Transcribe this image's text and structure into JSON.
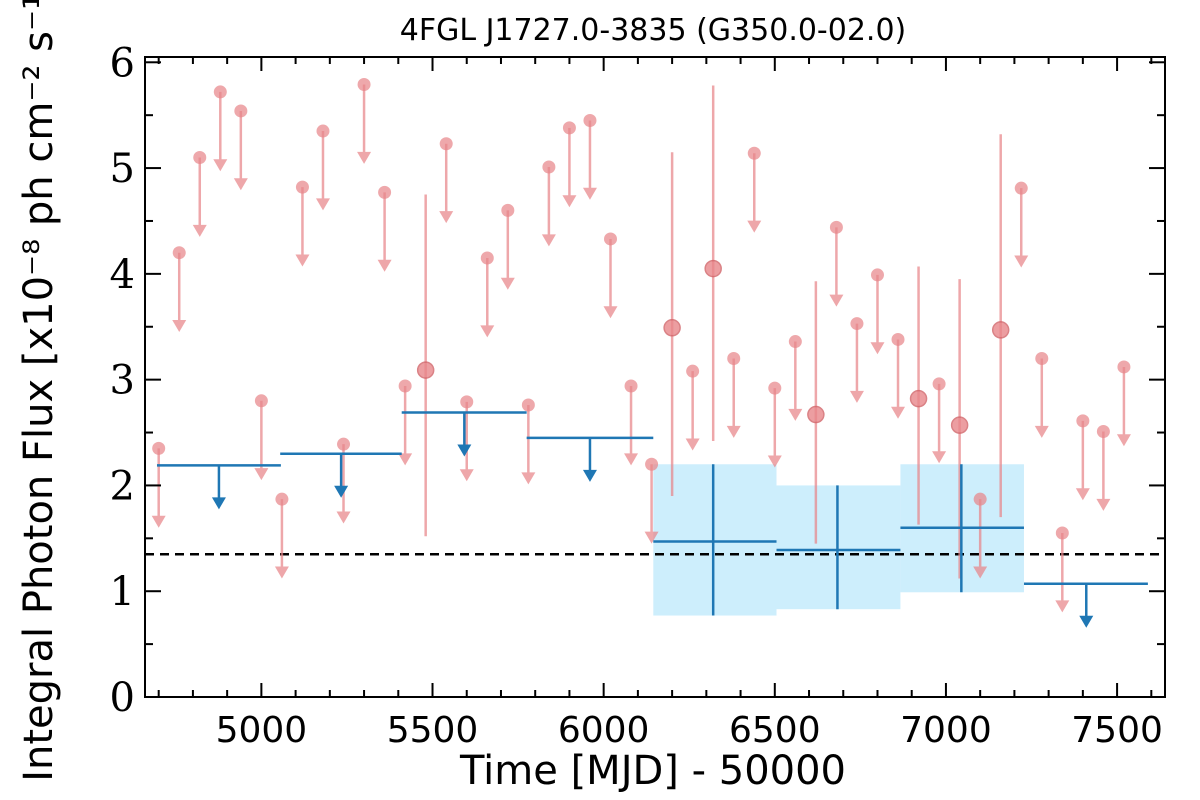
{
  "chart_data": {
    "type": "scatter",
    "title": "4FGL J1727.0-3835 (G350.0-02.0)",
    "xlabel": "Time [MJD] - 50000",
    "ylabel": "Integral Photon Flux [x10⁻⁸ ph cm⁻² s⁻¹]",
    "xlim": [
      4660,
      7640
    ],
    "ylim": [
      0,
      6.05
    ],
    "x_ticks": [
      5000,
      5500,
      6000,
      6500,
      7000,
      7500
    ],
    "y_ticks": [
      0,
      1,
      2,
      3,
      4,
      5,
      6
    ],
    "grid": false,
    "reference_line": {
      "y": 1.35,
      "style": "dashed",
      "color": "#000000"
    },
    "colors": {
      "monthly": "#e8868a",
      "yearly": "#1f77b4",
      "yearly_band": "#cdeefc"
    },
    "series": [
      {
        "points": [
          {
            "x": 4700,
            "y": 2.35,
            "ul": true
          },
          {
            "x": 4760,
            "y": 4.2,
            "ul": true
          },
          {
            "x": 4820,
            "y": 5.1,
            "ul": true
          },
          {
            "x": 4880,
            "y": 5.72,
            "ul": true
          },
          {
            "x": 4940,
            "y": 5.54,
            "ul": true
          },
          {
            "x": 5000,
            "y": 2.8,
            "ul": true
          },
          {
            "x": 5060,
            "y": 1.87,
            "ul": true
          },
          {
            "x": 5120,
            "y": 4.82,
            "ul": true
          },
          {
            "x": 5180,
            "y": 5.35,
            "ul": true
          },
          {
            "x": 5240,
            "y": 2.39,
            "ul": true
          },
          {
            "x": 5300,
            "y": 5.79,
            "ul": true
          },
          {
            "x": 5360,
            "y": 4.77,
            "ul": true
          },
          {
            "x": 5420,
            "y": 2.94,
            "ul": true
          },
          {
            "x": 5480,
            "y": 3.09,
            "ul": false,
            "ylo": 1.52,
            "yhi": 4.75
          },
          {
            "x": 5540,
            "y": 5.23,
            "ul": true
          },
          {
            "x": 5600,
            "y": 2.79,
            "ul": true
          },
          {
            "x": 5660,
            "y": 4.15,
            "ul": true
          },
          {
            "x": 5720,
            "y": 4.6,
            "ul": true
          },
          {
            "x": 5780,
            "y": 2.76,
            "ul": true
          },
          {
            "x": 5840,
            "y": 5.01,
            "ul": true
          },
          {
            "x": 5900,
            "y": 5.38,
            "ul": true
          },
          {
            "x": 5960,
            "y": 5.45,
            "ul": true
          },
          {
            "x": 6020,
            "y": 4.33,
            "ul": true
          },
          {
            "x": 6080,
            "y": 2.94,
            "ul": true
          },
          {
            "x": 6140,
            "y": 2.2,
            "ul": true
          },
          {
            "x": 6200,
            "y": 3.49,
            "ul": false,
            "ylo": 1.9,
            "yhi": 5.15
          },
          {
            "x": 6260,
            "y": 3.08,
            "ul": true
          },
          {
            "x": 6320,
            "y": 4.05,
            "ul": false,
            "ylo": 2.42,
            "yhi": 5.78
          },
          {
            "x": 6380,
            "y": 3.2,
            "ul": true
          },
          {
            "x": 6440,
            "y": 5.14,
            "ul": true
          },
          {
            "x": 6500,
            "y": 2.92,
            "ul": true
          },
          {
            "x": 6560,
            "y": 3.36,
            "ul": true
          },
          {
            "x": 6620,
            "y": 2.67,
            "ul": false,
            "ylo": 1.45,
            "yhi": 3.93
          },
          {
            "x": 6680,
            "y": 4.44,
            "ul": true
          },
          {
            "x": 6740,
            "y": 3.53,
            "ul": true
          },
          {
            "x": 6800,
            "y": 3.99,
            "ul": true
          },
          {
            "x": 6860,
            "y": 3.38,
            "ul": true
          },
          {
            "x": 6920,
            "y": 2.82,
            "ul": false,
            "ylo": 1.63,
            "yhi": 4.07
          },
          {
            "x": 6980,
            "y": 2.96,
            "ul": true
          },
          {
            "x": 7040,
            "y": 2.57,
            "ul": false,
            "ylo": 1.12,
            "yhi": 3.95
          },
          {
            "x": 7100,
            "y": 1.87,
            "ul": true
          },
          {
            "x": 7160,
            "y": 3.47,
            "ul": false,
            "ylo": 1.7,
            "yhi": 5.32
          },
          {
            "x": 7220,
            "y": 4.81,
            "ul": true
          },
          {
            "x": 7280,
            "y": 3.2,
            "ul": true
          },
          {
            "x": 7340,
            "y": 1.55,
            "ul": true
          },
          {
            "x": 7400,
            "y": 2.61,
            "ul": true
          },
          {
            "x": 7460,
            "y": 2.51,
            "ul": true
          },
          {
            "x": 7520,
            "y": 3.12,
            "ul": true
          }
        ]
      },
      {
        "points": [
          {
            "x": 4876,
            "xlo": 4695,
            "xhi": 5057,
            "y": 2.19,
            "ul": true
          },
          {
            "x": 5233,
            "xlo": 5055,
            "xhi": 5410,
            "y": 2.3,
            "ul": true
          },
          {
            "x": 5593,
            "xlo": 5410,
            "xhi": 5775,
            "y": 2.69,
            "ul": true
          },
          {
            "x": 5960,
            "xlo": 5775,
            "xhi": 6145,
            "y": 2.45,
            "ul": true
          },
          {
            "x": 6320,
            "xlo": 6145,
            "xhi": 6505,
            "y": 1.47,
            "ul": false,
            "ylo": 0.77,
            "yhi": 2.2
          },
          {
            "x": 6683,
            "xlo": 6505,
            "xhi": 6867,
            "y": 1.39,
            "ul": false,
            "ylo": 0.83,
            "yhi": 2.0
          },
          {
            "x": 7045,
            "xlo": 6867,
            "xhi": 7228,
            "y": 1.6,
            "ul": false,
            "ylo": 0.99,
            "yhi": 2.2
          },
          {
            "x": 7410,
            "xlo": 7228,
            "xhi": 7590,
            "y": 1.07,
            "ul": true
          }
        ]
      }
    ]
  }
}
